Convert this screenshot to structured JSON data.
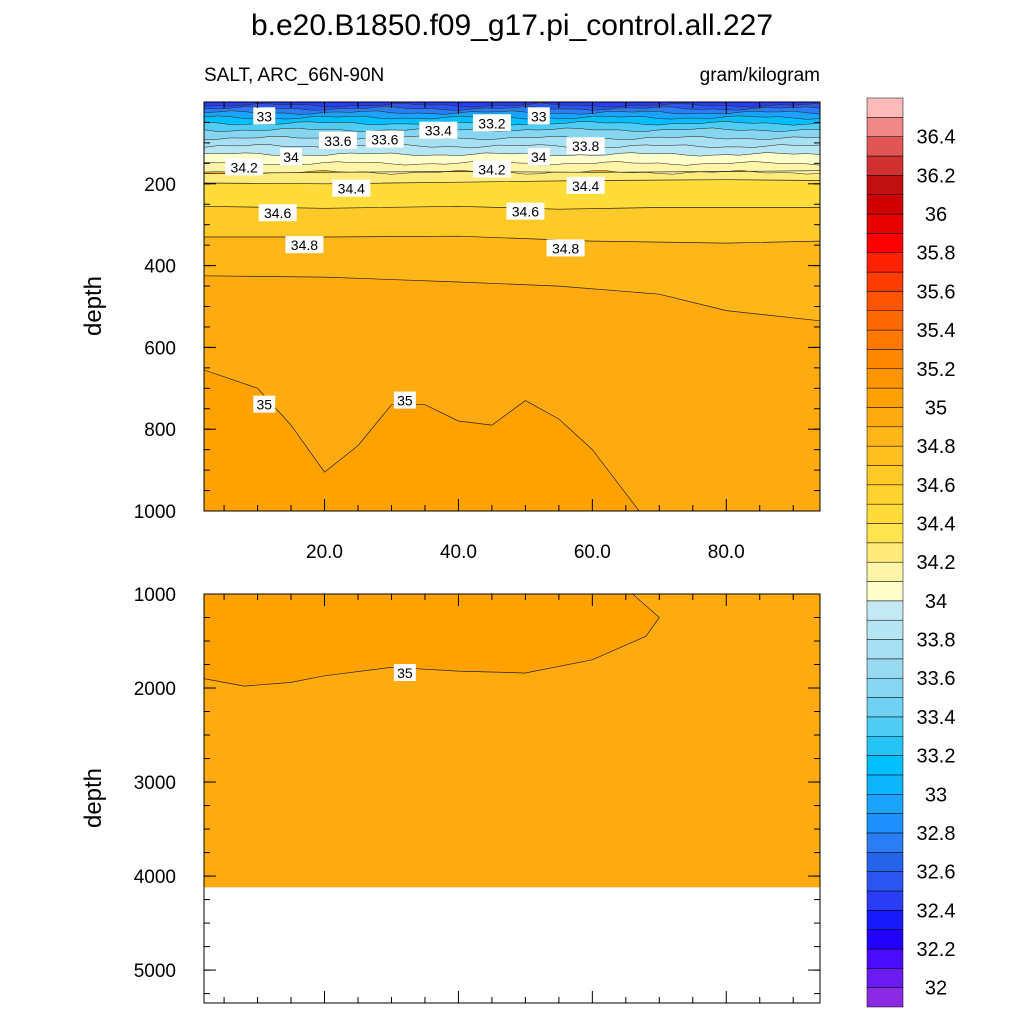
{
  "title": "b.e20.B1850.f09_g17.pi_control.all.227",
  "left_subtitle": "SALT, ARC_66N-90N",
  "right_subtitle": "gram/kilogram",
  "colors": {
    "white": "#ffffff",
    "axis": "#000000",
    "contour_line": "#333333",
    "label_box": "#ffffff"
  },
  "chart_data": [
    {
      "type": "contour",
      "panel": "upper",
      "variable": "SALT",
      "xlabel": "",
      "ylabel": "depth",
      "xlim": [
        2,
        94
      ],
      "ylim": [
        1000,
        0
      ],
      "x_ticks": [
        20,
        40,
        60,
        80
      ],
      "x_tick_labels": [
        "20.0",
        "40.0",
        "60.0",
        "80.0"
      ],
      "y_ticks": [
        200,
        400,
        600,
        800,
        1000
      ],
      "y_tick_labels": [
        "200",
        "400",
        "600",
        "800",
        "1000"
      ],
      "contour_lines": [
        {
          "level": 34.2,
          "points": [
            [
              2,
              175
            ],
            [
              20,
              172
            ],
            [
              40,
              170
            ],
            [
              60,
              172
            ],
            [
              80,
              170
            ],
            [
              94,
              168
            ]
          ]
        },
        {
          "level": 34.4,
          "points": [
            [
              2,
              198
            ],
            [
              20,
              200
            ],
            [
              40,
              196
            ],
            [
              60,
              192
            ],
            [
              80,
              190
            ],
            [
              94,
              192
            ]
          ]
        },
        {
          "level": 34.6,
          "points": [
            [
              2,
              255
            ],
            [
              20,
              260
            ],
            [
              40,
              255
            ],
            [
              55,
              262
            ],
            [
              70,
              258
            ],
            [
              94,
              258
            ]
          ]
        },
        {
          "level": 34.8,
          "points": [
            [
              2,
              330
            ],
            [
              20,
              330
            ],
            [
              40,
              328
            ],
            [
              60,
              340
            ],
            [
              80,
              345
            ],
            [
              94,
              340
            ]
          ]
        },
        {
          "level": 35.0,
          "points": [
            [
              2,
              425
            ],
            [
              20,
              428
            ],
            [
              40,
              440
            ],
            [
              55,
              450
            ],
            [
              70,
              470
            ],
            [
              80,
              510
            ],
            [
              94,
              535
            ]
          ]
        },
        {
          "level": 35.0,
          "points": [
            [
              2,
              655
            ],
            [
              10,
              700
            ],
            [
              15,
              790
            ],
            [
              20,
              905
            ],
            [
              25,
              840
            ],
            [
              30,
              740
            ],
            [
              35,
              740
            ],
            [
              40,
              780
            ],
            [
              45,
              790
            ],
            [
              50,
              730
            ],
            [
              55,
              775
            ],
            [
              60,
              850
            ],
            [
              67,
              1000
            ]
          ]
        }
      ],
      "contour_labels": [
        {
          "text": "33",
          "x": 11,
          "y": 35
        },
        {
          "text": "33.6",
          "x": 22,
          "y": 95
        },
        {
          "text": "33.6",
          "x": 29,
          "y": 92
        },
        {
          "text": "33.4",
          "x": 37,
          "y": 70
        },
        {
          "text": "33.2",
          "x": 45,
          "y": 52
        },
        {
          "text": "33",
          "x": 52,
          "y": 35
        },
        {
          "text": "33.8",
          "x": 59,
          "y": 108
        },
        {
          "text": "34.2",
          "x": 8,
          "y": 160
        },
        {
          "text": "34",
          "x": 15,
          "y": 135
        },
        {
          "text": "34",
          "x": 52,
          "y": 135
        },
        {
          "text": "34.2",
          "x": 45,
          "y": 165
        },
        {
          "text": "34.4",
          "x": 24,
          "y": 212
        },
        {
          "text": "34.4",
          "x": 59,
          "y": 205
        },
        {
          "text": "34.6",
          "x": 13,
          "y": 272
        },
        {
          "text": "34.6",
          "x": 50,
          "y": 268
        },
        {
          "text": "34.8",
          "x": 17,
          "y": 350
        },
        {
          "text": "34.8",
          "x": 56,
          "y": 358
        },
        {
          "text": "35",
          "x": 11,
          "y": 740
        },
        {
          "text": "35",
          "x": 32,
          "y": 730
        }
      ],
      "notes": "shallow layer 0-170 shows fresher blue water (32.4 near surface) grading to 34.2"
    },
    {
      "type": "contour",
      "panel": "lower",
      "variable": "SALT",
      "xlabel": "",
      "ylabel": "depth",
      "xlim": [
        2,
        94
      ],
      "ylim": [
        5350,
        1000
      ],
      "y_ticks": [
        1000,
        2000,
        3000,
        4000,
        5000
      ],
      "y_tick_labels": [
        "1000",
        "2000",
        "3000",
        "4000",
        "5000"
      ],
      "data_bottom": 4120,
      "contour_lines": [
        {
          "level": 35.0,
          "points": [
            [
              2,
              1900
            ],
            [
              8,
              1980
            ],
            [
              15,
              1940
            ],
            [
              20,
              1870
            ],
            [
              30,
              1780
            ],
            [
              40,
              1820
            ],
            [
              50,
              1840
            ],
            [
              60,
              1700
            ],
            [
              68,
              1450
            ],
            [
              70,
              1250
            ],
            [
              66,
              1000
            ]
          ]
        }
      ],
      "contour_labels": [
        {
          "text": "35",
          "x": 32,
          "y": 1840
        }
      ]
    }
  ],
  "colorbar": {
    "labels": [
      "32",
      "32.2",
      "32.4",
      "32.6",
      "32.8",
      "33",
      "33.2",
      "33.4",
      "33.6",
      "33.8",
      "34",
      "34.2",
      "34.4",
      "34.6",
      "34.8",
      "35",
      "35.2",
      "35.4",
      "35.6",
      "35.8",
      "36",
      "36.2",
      "36.4"
    ],
    "levels": [
      31.9,
      32,
      32.1,
      32.2,
      32.3,
      32.4,
      32.5,
      32.6,
      32.7,
      32.8,
      32.9,
      33,
      33.1,
      33.2,
      33.3,
      33.4,
      33.5,
      33.6,
      33.7,
      33.8,
      33.9,
      34,
      34.1,
      34.2,
      34.3,
      34.4,
      34.5,
      34.6,
      34.7,
      34.8,
      34.9,
      35,
      35.1,
      35.2,
      35.3,
      35.4,
      35.5,
      35.6,
      35.7,
      35.8,
      35.9,
      36,
      36.1,
      36.2,
      36.3,
      36.4,
      36.5
    ],
    "colors": [
      "#8a2be2",
      "#6a1cf0",
      "#4b0bff",
      "#2200ff",
      "#1a1aff",
      "#2a3df5",
      "#2b55f0",
      "#2563eb",
      "#2a7ef5",
      "#1e90ff",
      "#1aa3ff",
      "#0fb4ff",
      "#00bfff",
      "#26c4f5",
      "#4fcdf5",
      "#6fd2f5",
      "#86d6f2",
      "#98dbf0",
      "#a6e0f2",
      "#b6e5f3",
      "#c3e9f4",
      "#ffffcc",
      "#fff5a8",
      "#ffeb7a",
      "#ffe54d",
      "#ffdc3a",
      "#ffd22e",
      "#ffc927",
      "#ffbf1f",
      "#ffb619",
      "#ffab10",
      "#ffa200",
      "#ff9500",
      "#ff8800",
      "#ff7900",
      "#ff6a00",
      "#ff5400",
      "#ff3d00",
      "#ff2200",
      "#ff0000",
      "#e60000",
      "#d10000",
      "#c01010",
      "#d13030",
      "#e05555",
      "#f08888",
      "#ffbbbb"
    ]
  }
}
